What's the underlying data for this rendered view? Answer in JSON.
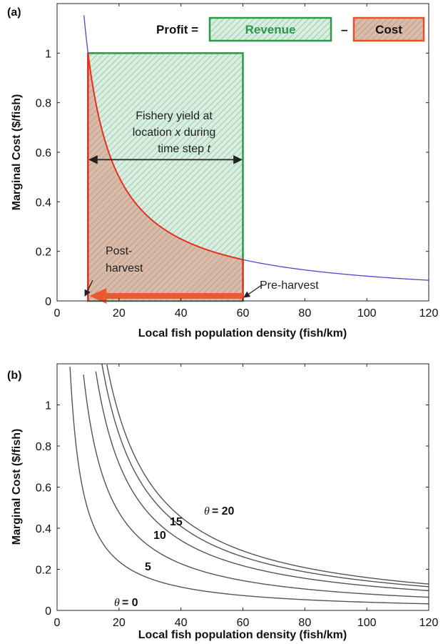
{
  "chart_data": [
    {
      "panel": "(a)",
      "type": "line",
      "xlabel": "Local fish population density (fish/km)",
      "ylabel": "Marginal Cost ($/fish)",
      "xlim": [
        0,
        120
      ],
      "ylim": [
        0,
        1.2
      ],
      "xticks": [
        0,
        20,
        40,
        60,
        80,
        100,
        120
      ],
      "yticks": [
        0,
        0.2,
        0.4,
        0.6,
        0.8,
        1
      ],
      "grid": false,
      "series": [
        {
          "color": "#4040c0",
          "function": "10/x",
          "x_range": [
            8.3,
            120
          ]
        },
        {
          "color": "#e83020",
          "function": "10/x",
          "x_range": [
            10,
            60
          ]
        }
      ],
      "regions": {
        "revenue": {
          "x": [
            10,
            60
          ],
          "y": [
            0,
            1
          ],
          "color": "#2a9a48",
          "fill": "#d7ebdf"
        },
        "cost": {
          "x": [
            10,
            60
          ],
          "under_curve": true,
          "color": "#e83020",
          "fill": "#d8b8a8"
        }
      },
      "legend": {
        "prefix": "Profit =",
        "revenue": "Revenue",
        "minus": "–",
        "cost": "Cost",
        "revenue_color": "#2a9a48",
        "cost_color": "#e8502a"
      },
      "annotations": {
        "yield_line1": "Fishery yield at",
        "yield_line2_pre": "location ",
        "yield_line2_var": "x",
        "yield_line2_post": " during",
        "yield_line3_pre": "time step ",
        "yield_line3_var": "t",
        "post_harvest_1": "Post-",
        "post_harvest_2": "harvest",
        "pre_harvest": "Pre-harvest"
      },
      "yield_arrow_y": 0.57,
      "harvest_arrow": {
        "from_x": 60,
        "to_x": 10,
        "color": "#e85a30"
      }
    },
    {
      "panel": "(b)",
      "type": "line",
      "xlabel": "Local fish population density (fish/km)",
      "ylabel": "Marginal Cost ($/fish)",
      "xlim": [
        0,
        120
      ],
      "ylim": [
        0,
        1.2
      ],
      "xticks": [
        0,
        20,
        40,
        60,
        80,
        100,
        120
      ],
      "yticks": [
        0,
        0.2,
        0.4,
        0.6,
        0.8,
        1
      ],
      "grid": false,
      "line_color": "#555555",
      "series": [
        {
          "theta": 0,
          "label": "θ = 0",
          "k": 5
        },
        {
          "theta": 5,
          "label": "5",
          "k": 10
        },
        {
          "theta": 10,
          "label": "10",
          "k": 15
        },
        {
          "theta": 15,
          "label": "15",
          "k": 18
        },
        {
          "theta": 20,
          "label": "θ = 20",
          "k": 20
        }
      ],
      "curve_labels": {
        "theta0_symbol": "θ",
        "theta0_value": "= 0",
        "five": "5",
        "ten": "10",
        "fifteen": "15",
        "theta20_symbol": "θ",
        "theta20_value": "= 20"
      }
    }
  ]
}
